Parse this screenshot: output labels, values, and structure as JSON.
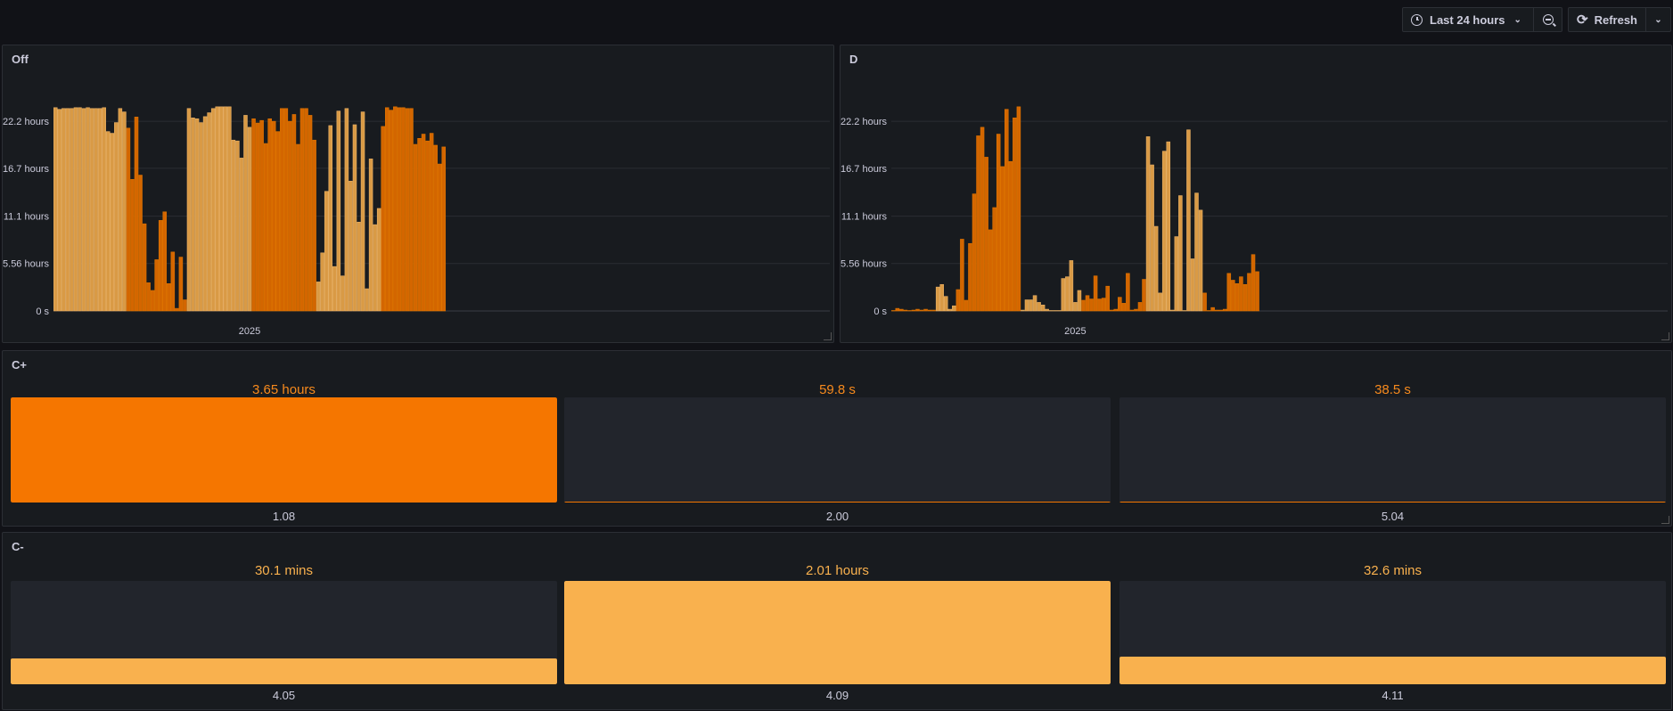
{
  "toolbar": {
    "time_range": "Last 24 hours",
    "refresh_label": "Refresh"
  },
  "colors": {
    "light": "#d99a45",
    "dark": "#d36600",
    "cplus": "#f57600",
    "cminus": "#f9b14e"
  },
  "chart_data": [
    {
      "type": "bar",
      "title": "Off",
      "xlabel": "2025",
      "ylabel": "",
      "y_unit": "hours",
      "ylim": [
        0,
        26.7
      ],
      "x_slots": 192,
      "y_ticks": [
        {
          "value": 0,
          "label": "0 s"
        },
        {
          "value": 5.56,
          "label": "5.56 hours"
        },
        {
          "value": 11.1,
          "label": "11.1 hours"
        },
        {
          "value": 16.7,
          "label": "16.7 hours"
        },
        {
          "value": 22.2,
          "label": "22.2 hours"
        }
      ],
      "groups": [
        {
          "series": "light",
          "values": [
            23.8,
            23.6,
            23.7,
            23.7,
            23.7,
            23.8,
            23.8,
            23.7,
            23.8,
            23.7,
            23.7,
            23.7,
            23.8,
            21.0,
            20.8,
            22.05,
            23.7,
            23.3
          ]
        },
        {
          "series": "dark",
          "values": [
            21.4,
            15.4,
            22.7,
            15.9,
            10.2,
            3.3,
            2.4,
            6.0,
            10.6,
            11.6,
            3.2,
            6.9,
            0.3,
            6.3,
            1.3
          ]
        },
        {
          "series": "light",
          "values": [
            23.7,
            22.6,
            22.5,
            22.05,
            22.75,
            23.2,
            23.7,
            23.9,
            23.9,
            23.9,
            23.9,
            20.0,
            19.9,
            17.9,
            22.9,
            21.5
          ]
        },
        {
          "series": "dark",
          "values": [
            22.5,
            22.0,
            22.3,
            19.6,
            22.5,
            22.2,
            21.0,
            23.7,
            23.7,
            22.2,
            23.0,
            19.5,
            23.7,
            23.7,
            22.9,
            20.0
          ]
        },
        {
          "series": "light",
          "values": [
            3.4,
            6.8,
            14.0,
            21.7,
            5.2,
            23.4,
            4.1,
            23.7,
            15.2,
            21.8,
            10.4,
            23.3,
            2.6,
            17.8,
            10.1,
            12.0
          ]
        },
        {
          "series": "dark",
          "values": [
            21.6,
            23.8,
            23.5,
            23.9,
            23.8,
            23.8,
            23.7,
            23.7,
            19.5,
            20.2,
            20.7,
            19.9,
            20.8,
            19.4,
            17.2,
            19.2
          ]
        }
      ]
    },
    {
      "type": "bar",
      "title": "D",
      "xlabel": "2025",
      "ylabel": "",
      "y_unit": "hours",
      "ylim": [
        0,
        26.7
      ],
      "x_slots": 192,
      "y_ticks": [
        {
          "value": 0,
          "label": "0 s"
        },
        {
          "value": 5.56,
          "label": "5.56 hours"
        },
        {
          "value": 11.1,
          "label": "11.1 hours"
        },
        {
          "value": 16.7,
          "label": "16.7 hours"
        },
        {
          "value": 22.2,
          "label": "22.2 hours"
        }
      ],
      "groups": [
        {
          "series": "dark",
          "values": [
            0.05,
            0.3,
            0.2,
            0.1,
            0.05,
            0.1,
            0.2,
            0.1,
            0.2,
            0.1,
            0.1
          ]
        },
        {
          "series": "light",
          "values": [
            2.8,
            3.1,
            1.7,
            0.2,
            0.6
          ]
        },
        {
          "series": "dark",
          "values": [
            2.5,
            8.4,
            1.25,
            7.9,
            13.7,
            20.5,
            21.5,
            18.0,
            9.5,
            12.1,
            20.7,
            16.9,
            23.6,
            17.5,
            22.6,
            23.9
          ]
        },
        {
          "series": "light",
          "values": [
            0.1,
            1.3,
            1.3,
            1.8,
            1.0,
            0.7,
            0.2,
            0.05,
            0.05,
            0.05,
            3.8,
            4.0,
            5.9,
            1.0,
            2.4
          ]
        },
        {
          "series": "dark",
          "values": [
            1.25,
            1.8,
            1.4,
            4.1,
            1.4,
            1.5,
            2.9,
            0.1,
            0.2,
            1.6,
            0.9,
            4.4,
            0.1,
            0.2,
            1.0,
            3.7
          ]
        },
        {
          "series": "light",
          "values": [
            20.4,
            17.1,
            9.9,
            2.1,
            18.7,
            19.8,
            0.1,
            8.7,
            13.5,
            0.05,
            21.2,
            6.1,
            13.8,
            11.8
          ]
        },
        {
          "series": "dark",
          "values": [
            2.1,
            0.05,
            0.4,
            0.1,
            0.1,
            0.2,
            4.4,
            3.6,
            3.2,
            4.0,
            3.1,
            4.4,
            6.6,
            4.6
          ]
        }
      ]
    }
  ],
  "gauges": [
    {
      "title": "C+",
      "max_seconds": 13140,
      "items": [
        {
          "value_text": "3.65 hours",
          "seconds": 13140,
          "label": "1.08"
        },
        {
          "value_text": "59.8 s",
          "seconds": 59.8,
          "label": "2.00"
        },
        {
          "value_text": "38.5 s",
          "seconds": 38.5,
          "label": "5.04"
        }
      ]
    },
    {
      "title": "C-",
      "max_seconds": 7236,
      "items": [
        {
          "value_text": "30.1 mins",
          "seconds": 1806,
          "label": "4.05"
        },
        {
          "value_text": "2.01 hours",
          "seconds": 7236,
          "label": "4.09"
        },
        {
          "value_text": "32.6 mins",
          "seconds": 1956,
          "label": "4.11"
        }
      ]
    }
  ]
}
